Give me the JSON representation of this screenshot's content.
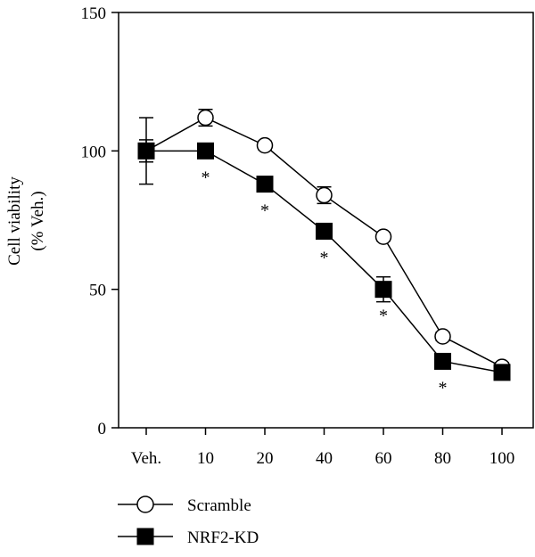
{
  "chart_data": {
    "type": "line",
    "title": "",
    "xlabel": "",
    "ylabel_lines": [
      "Cell viability",
      "(% Veh.)"
    ],
    "categories": [
      "Veh.",
      "10",
      "20",
      "40",
      "60",
      "80",
      "100"
    ],
    "ylim": [
      0,
      150
    ],
    "yticks": [
      0,
      50,
      100,
      150
    ],
    "ytick_labels": [
      "0",
      "50",
      "100",
      "150"
    ],
    "grid": false,
    "legend_position": "bottom-left",
    "series": [
      {
        "name": "Scramble",
        "marker": "open-circle",
        "values": [
          100,
          112,
          102,
          84,
          69,
          33,
          22
        ],
        "errors": [
          12,
          3,
          1.5,
          3,
          1.5,
          1.5,
          1.5
        ]
      },
      {
        "name": "NRF2-KD",
        "marker": "filled-square",
        "values": [
          100,
          100,
          88,
          71,
          50,
          24,
          20
        ],
        "errors": [
          4,
          1,
          1,
          1.5,
          4.5,
          1,
          1
        ]
      }
    ],
    "significance": {
      "label": "*",
      "categories": [
        "10",
        "20",
        "40",
        "60",
        "80"
      ]
    },
    "colors": {
      "line": "#000000",
      "open_marker_fill": "#ffffff",
      "filled_marker_fill": "#000000"
    }
  }
}
